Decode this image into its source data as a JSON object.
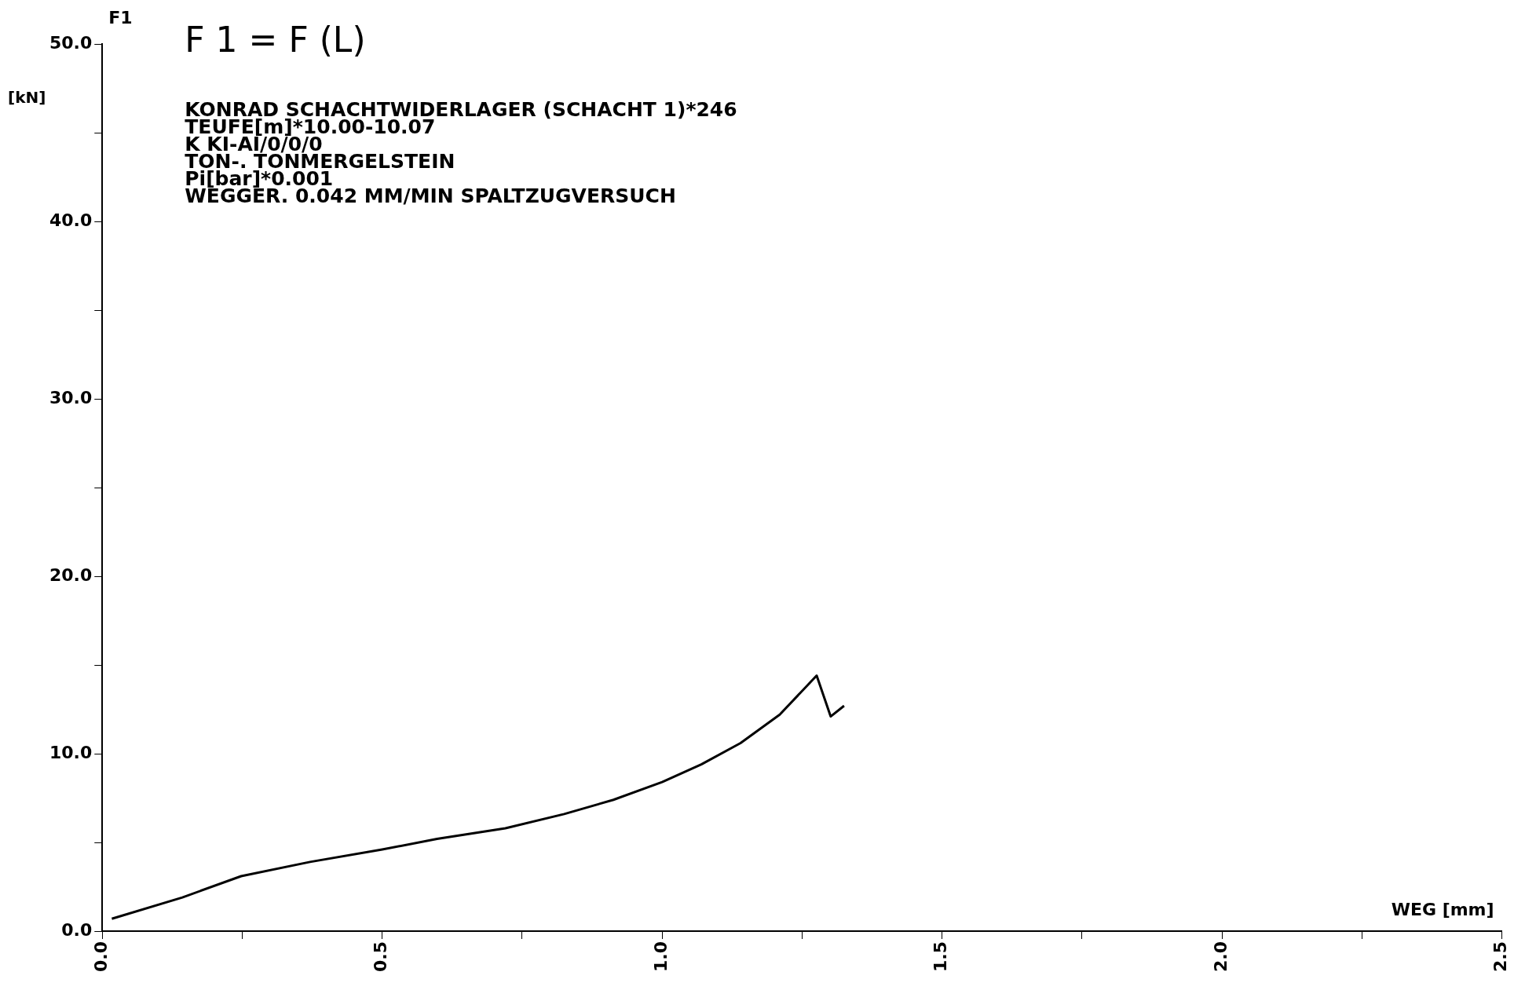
{
  "chart_data": {
    "type": "line",
    "title": "F 1 = F (L)",
    "ylabel": "[kN]",
    "xlabel": "WEG [mm]",
    "annotations": [
      "F1",
      "KONRAD SCHACHTWIDERLAGER (SCHACHT 1)*246",
      "TEUFE[m]*10.00-10.07",
      "K KI-AI/0/0/0",
      "TON-. TONMERGELSTEIN",
      "Pi[bar]*0.001",
      "WEGGER. 0.042 MM/MIN SPALTZUGVERSUCH"
    ],
    "series": [
      {
        "color": "#000000",
        "x": [
          0.017,
          0.143,
          0.248,
          0.371,
          0.5,
          0.598,
          0.72,
          0.825,
          0.913,
          1.0,
          1.07,
          1.14,
          1.21,
          1.276,
          1.301,
          1.325
        ],
        "values": [
          0.7,
          1.9,
          3.1,
          3.9,
          4.6,
          5.2,
          5.8,
          6.6,
          7.4,
          8.4,
          9.4,
          10.6,
          12.2,
          14.4,
          12.1,
          12.7
        ]
      }
    ],
    "xlim": [
      0,
      2.5
    ],
    "xticks": [
      {
        "value": 0,
        "label": "0.0"
      },
      {
        "value": 0.25,
        "label": null
      },
      {
        "value": 0.5,
        "label": "0.5"
      },
      {
        "value": 0.75,
        "label": null
      },
      {
        "value": 1,
        "label": "1.0"
      },
      {
        "value": 1.25,
        "label": null
      },
      {
        "value": 1.5,
        "label": "1.5"
      },
      {
        "value": 1.75,
        "label": null
      },
      {
        "value": 2,
        "label": "2.0"
      },
      {
        "value": 2.25,
        "label": null
      },
      {
        "value": 2.5,
        "label": "2.5"
      }
    ],
    "ylim": [
      0,
      50
    ],
    "yticks": [
      {
        "value": 0,
        "label": "0.0"
      },
      {
        "value": 5,
        "label": null
      },
      {
        "value": 10,
        "label": "10.0"
      },
      {
        "value": 15,
        "label": null
      },
      {
        "value": 20,
        "label": "20.0"
      },
      {
        "value": 25,
        "label": null
      },
      {
        "value": 30,
        "label": "30.0"
      },
      {
        "value": 35,
        "label": null
      },
      {
        "value": 40,
        "label": "40.0"
      },
      {
        "value": 45,
        "label": null
      },
      {
        "value": 50,
        "label": "50.0"
      }
    ],
    "grid": false,
    "legend": false,
    "marker": "none",
    "line_style": "solid"
  }
}
